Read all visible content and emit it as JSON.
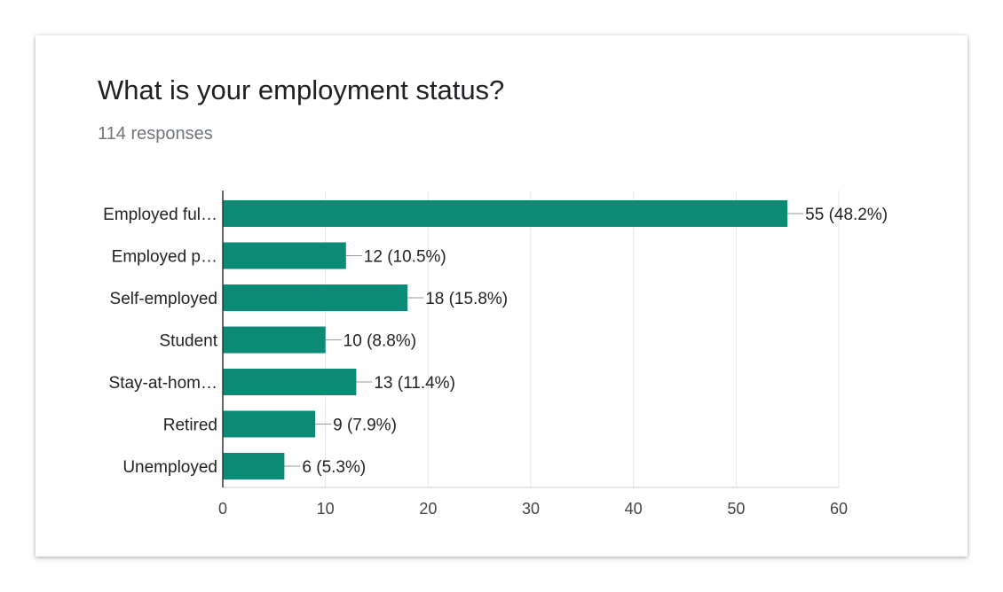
{
  "question": {
    "title": "What is your employment status?",
    "responses": "114 responses"
  },
  "chart_data": {
    "type": "bar",
    "orientation": "horizontal",
    "categories": [
      "Employed ful…",
      "Employed p…",
      "Self-employed",
      "Student",
      "Stay-at-hom…",
      "Retired",
      "Unemployed"
    ],
    "values": [
      55,
      12,
      18,
      10,
      13,
      9,
      6
    ],
    "data_labels": [
      "55 (48.2%)",
      "12 (10.5%)",
      "18 (15.8%)",
      "10 (8.8%)",
      "13 (11.4%)",
      "9 (7.9%)",
      "6 (5.3%)"
    ],
    "xlim": [
      0,
      60
    ],
    "xticks": [
      0,
      10,
      20,
      30,
      40,
      50,
      60
    ],
    "grid": true,
    "bar_color": "#0b8a75"
  }
}
